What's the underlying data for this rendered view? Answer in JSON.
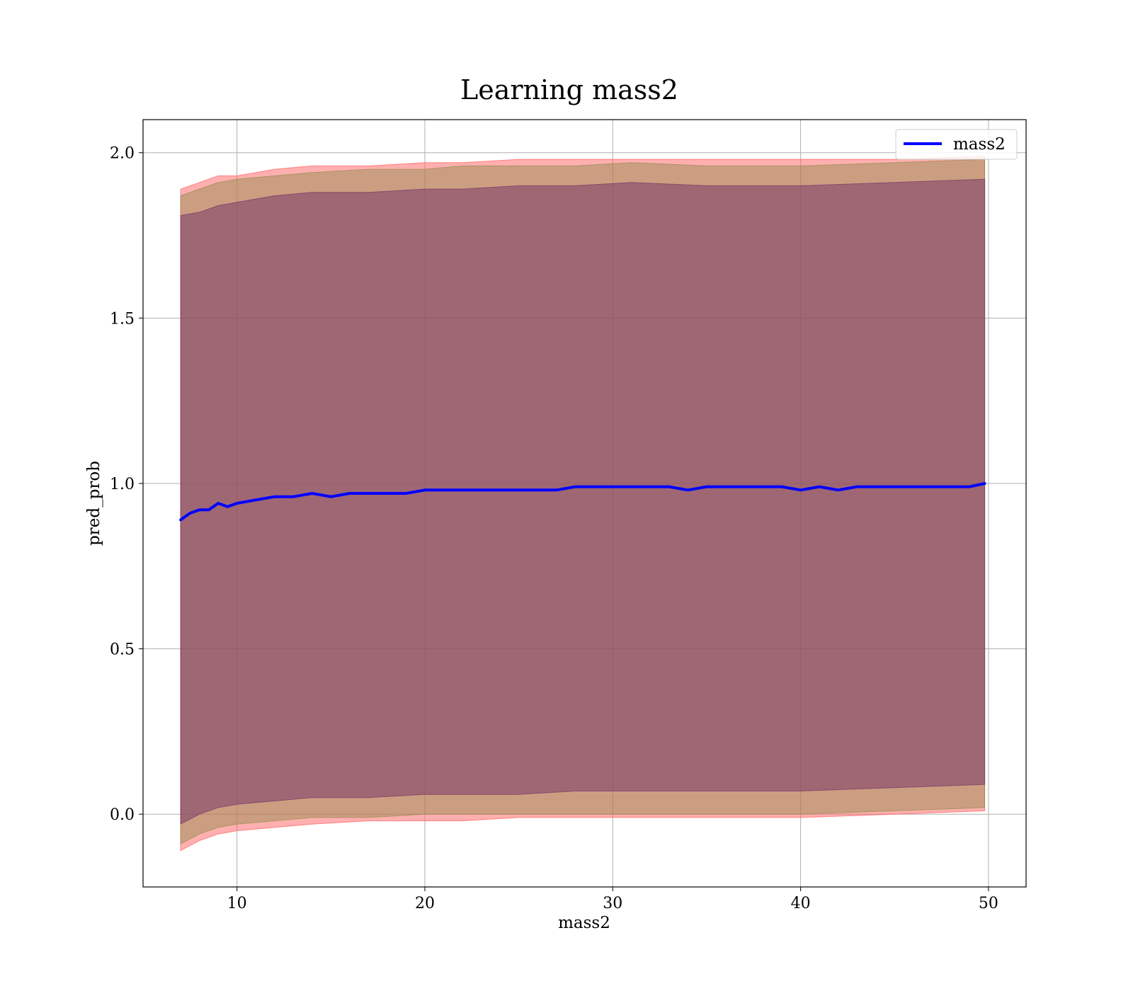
{
  "chart_data": {
    "type": "line",
    "title": "Learning mass2",
    "xlabel": "mass2",
    "ylabel": "pred_prob",
    "xlim": [
      5,
      52
    ],
    "ylim": [
      -0.22,
      2.1
    ],
    "xticks": [
      10,
      20,
      30,
      40,
      50
    ],
    "yticks": [
      0.0,
      0.5,
      1.0,
      1.5,
      2.0
    ],
    "xtick_labels": [
      "10",
      "20",
      "30",
      "40",
      "50"
    ],
    "ytick_labels": [
      "0.0",
      "0.5",
      "1.0",
      "1.5",
      "2.0"
    ],
    "grid": true,
    "legend": {
      "placement": "top-right",
      "entries": [
        {
          "label": "mass2",
          "color": "#0000ff"
        }
      ]
    },
    "series": [
      {
        "name": "mass2",
        "color": "#0000ff",
        "x": [
          7.0,
          7.5,
          8.0,
          8.5,
          9.0,
          9.5,
          10.0,
          11.0,
          12.0,
          13.0,
          14.0,
          15.0,
          16.0,
          17.0,
          18.0,
          19.0,
          20.0,
          21.0,
          22.0,
          23.0,
          24.0,
          25.0,
          26.0,
          27.0,
          28.0,
          29.0,
          30.0,
          31.0,
          32.0,
          33.0,
          34.0,
          35.0,
          36.0,
          37.0,
          38.0,
          39.0,
          40.0,
          41.0,
          42.0,
          43.0,
          44.0,
          45.0,
          46.0,
          47.0,
          48.0,
          49.0,
          49.8
        ],
        "y": [
          0.89,
          0.91,
          0.92,
          0.92,
          0.94,
          0.93,
          0.94,
          0.95,
          0.96,
          0.96,
          0.97,
          0.96,
          0.97,
          0.97,
          0.97,
          0.97,
          0.98,
          0.98,
          0.98,
          0.98,
          0.98,
          0.98,
          0.98,
          0.98,
          0.99,
          0.99,
          0.99,
          0.99,
          0.99,
          0.99,
          0.98,
          0.99,
          0.99,
          0.99,
          0.99,
          0.99,
          0.98,
          0.99,
          0.98,
          0.99,
          0.99,
          0.99,
          0.99,
          0.99,
          0.99,
          0.99,
          1.0
        ]
      }
    ],
    "bands": [
      {
        "color": "#ff5f5f",
        "opacity": 0.5,
        "x": [
          7.0,
          8.0,
          9.0,
          10.0,
          12.0,
          14.0,
          17.0,
          20.0,
          22.0,
          25.0,
          28.0,
          31.0,
          35.0,
          40.0,
          45.0,
          49.8
        ],
        "upper": [
          1.89,
          1.91,
          1.93,
          1.93,
          1.95,
          1.96,
          1.96,
          1.97,
          1.97,
          1.98,
          1.98,
          1.98,
          1.98,
          1.98,
          1.98,
          1.99
        ],
        "lower": [
          -0.11,
          -0.08,
          -0.06,
          -0.05,
          -0.04,
          -0.03,
          -0.02,
          -0.02,
          -0.02,
          -0.01,
          -0.01,
          -0.01,
          -0.01,
          -0.01,
          0.0,
          0.01
        ]
      },
      {
        "color": "#8e8a4a",
        "opacity": 0.45,
        "x": [
          7.0,
          8.0,
          9.0,
          10.0,
          12.0,
          14.0,
          17.0,
          20.0,
          22.0,
          25.0,
          28.0,
          31.0,
          35.0,
          40.0,
          45.0,
          49.8
        ],
        "upper": [
          1.87,
          1.89,
          1.91,
          1.92,
          1.93,
          1.94,
          1.95,
          1.95,
          1.96,
          1.96,
          1.96,
          1.97,
          1.96,
          1.96,
          1.97,
          1.98
        ],
        "lower": [
          -0.09,
          -0.06,
          -0.04,
          -0.03,
          -0.02,
          -0.01,
          -0.01,
          0.0,
          0.0,
          0.0,
          0.0,
          0.0,
          0.0,
          0.0,
          0.01,
          0.02
        ]
      },
      {
        "color": "#7a3a6a",
        "opacity": 0.55,
        "x": [
          7.0,
          8.0,
          9.0,
          10.0,
          12.0,
          14.0,
          17.0,
          20.0,
          22.0,
          25.0,
          28.0,
          31.0,
          35.0,
          40.0,
          45.0,
          49.8
        ],
        "upper": [
          1.81,
          1.82,
          1.84,
          1.85,
          1.87,
          1.88,
          1.88,
          1.89,
          1.89,
          1.9,
          1.9,
          1.91,
          1.9,
          1.9,
          1.91,
          1.92
        ],
        "lower": [
          -0.03,
          0.0,
          0.02,
          0.03,
          0.04,
          0.05,
          0.05,
          0.06,
          0.06,
          0.06,
          0.07,
          0.07,
          0.07,
          0.07,
          0.08,
          0.09
        ]
      }
    ]
  }
}
